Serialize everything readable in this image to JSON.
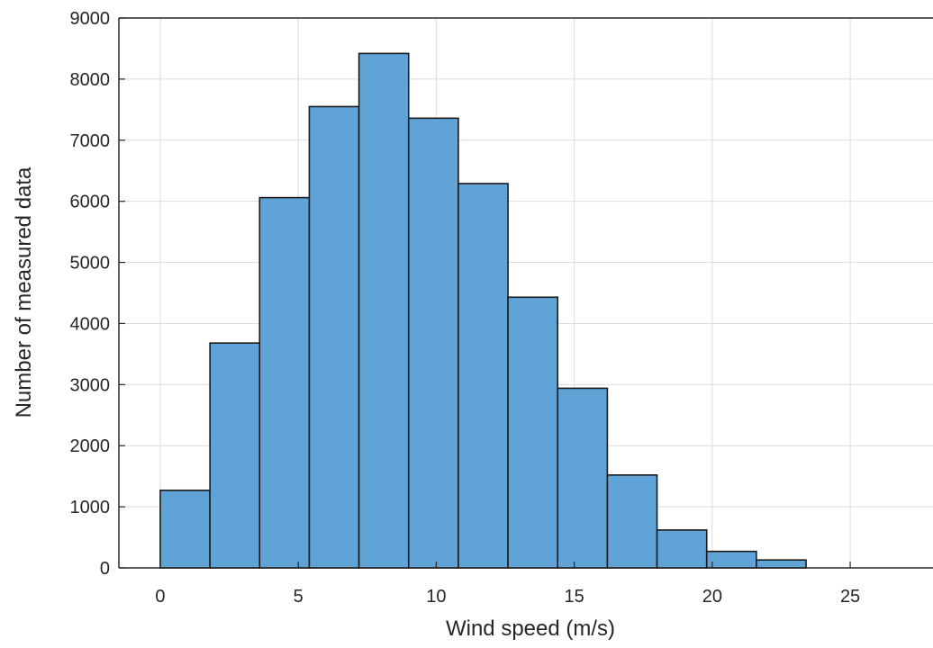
{
  "chart_data": {
    "type": "bar",
    "subtype": "histogram",
    "title": "",
    "xlabel": "Wind speed (m/s)",
    "ylabel": "Number of measured data",
    "xlim": [
      -1.5,
      28
    ],
    "ylim": [
      0,
      9000
    ],
    "x_ticks": [
      0,
      5,
      10,
      15,
      20,
      25
    ],
    "y_ticks": [
      0,
      1000,
      2000,
      3000,
      4000,
      5000,
      6000,
      7000,
      8000,
      9000
    ],
    "bin_edges": [
      0,
      1.8,
      3.6,
      5.4,
      7.2,
      9.0,
      10.8,
      12.6,
      14.4,
      16.2,
      18.0,
      19.8,
      21.6,
      23.4
    ],
    "values": [
      1270,
      3680,
      6060,
      7550,
      8420,
      7360,
      6290,
      4430,
      2940,
      1520,
      620,
      270,
      130
    ],
    "grid": true,
    "colors": {
      "bar_fill": "#5fa3d7",
      "bar_edge": "#1a1a1a",
      "grid": "#dcdcdc",
      "axis": "#262626"
    }
  }
}
